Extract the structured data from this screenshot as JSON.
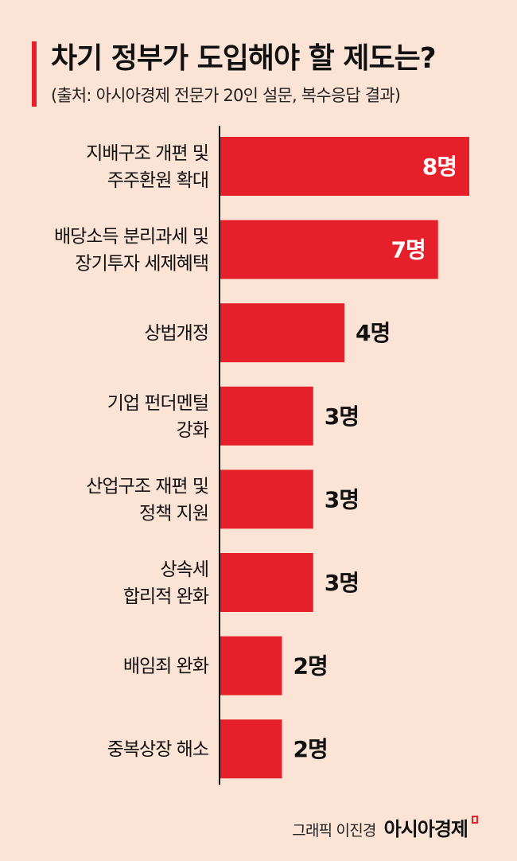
{
  "title": "차기 정부가 도입해야 할 제도는?",
  "subtitle": "(출처: 아시아경제 전문가 20인 설문, 복수응답 결과)",
  "footer": {
    "credit": "그래픽 이진경",
    "brand": "아시아경제"
  },
  "colors": {
    "background": "#fbe4d6",
    "bar": "#e5202a",
    "accent": "#e5202a",
    "axis": "#111111"
  },
  "chart_data": {
    "type": "bar",
    "orientation": "horizontal",
    "title": "차기 정부가 도입해야 할 제도는?",
    "subtitle": "(출처: 아시아경제 전문가 20인 설문, 복수응답 결과)",
    "categories": [
      [
        "지배구조 개편 및",
        "주주환원 확대"
      ],
      [
        "배당소득 분리과세 및",
        "장기투자 세제혜택"
      ],
      [
        "상법개정"
      ],
      [
        "기업 펀더멘털",
        "강화"
      ],
      [
        "산업구조 재편 및",
        "정책 지원"
      ],
      [
        "상속세",
        "합리적 완화"
      ],
      [
        "배임죄 완화"
      ],
      [
        "중복상장 해소"
      ]
    ],
    "values": [
      8,
      7,
      4,
      3,
      3,
      3,
      2,
      2
    ],
    "value_labels": [
      "8명",
      "7명",
      "4명",
      "3명",
      "3명",
      "3명",
      "2명",
      "2명"
    ],
    "unit": "명",
    "xlim": [
      0,
      8
    ],
    "grid": false,
    "legend": "none"
  }
}
